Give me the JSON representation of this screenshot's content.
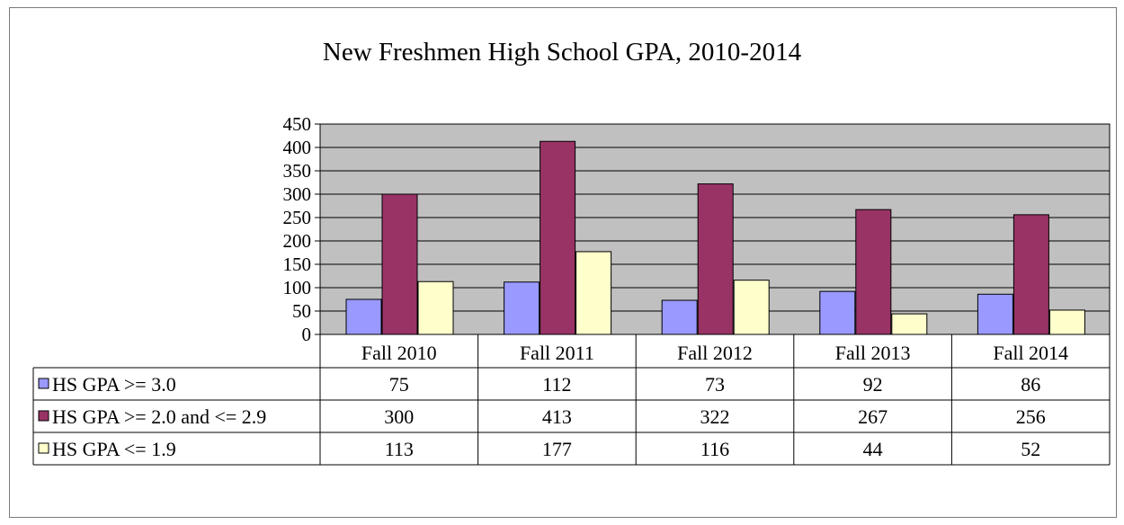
{
  "chart_data": {
    "type": "bar",
    "title": "New Freshmen High School GPA, 2010-2014",
    "categories": [
      "Fall 2010",
      "Fall 2011",
      "Fall 2012",
      "Fall 2013",
      "Fall 2014"
    ],
    "series": [
      {
        "name": "HS GPA >= 3.0",
        "values": [
          75,
          112,
          73,
          92,
          86
        ],
        "color": "#9999ff"
      },
      {
        "name": "HS GPA >= 2.0 and <= 2.9",
        "values": [
          300,
          413,
          322,
          267,
          256
        ],
        "color": "#993366"
      },
      {
        "name": "HS GPA <= 1.9",
        "values": [
          113,
          177,
          116,
          44,
          52
        ],
        "color": "#ffffcc"
      }
    ],
    "ylim": [
      0,
      450
    ],
    "yticks": [
      0,
      50,
      100,
      150,
      200,
      250,
      300,
      350,
      400,
      450
    ],
    "grid": true,
    "plot_background": "#c0c0c0",
    "legend": "data-table",
    "xlabel": "",
    "ylabel": ""
  }
}
